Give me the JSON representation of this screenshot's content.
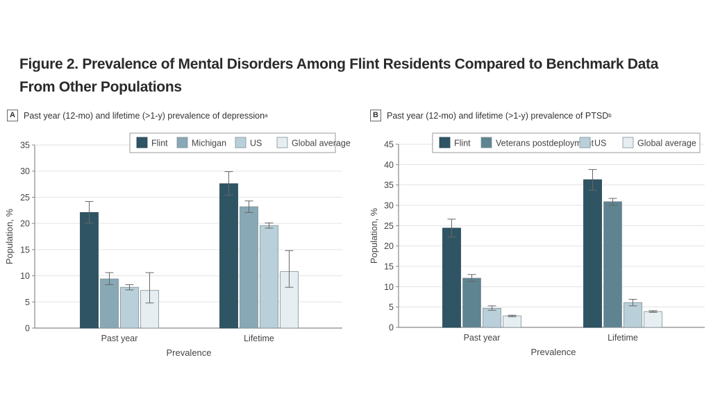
{
  "figure": {
    "title": "Figure 2.  Prevalence of Mental Disorders Among Flint Residents Compared to Benchmark Data From Other Populations"
  },
  "colors": {
    "flint": "#2f5565",
    "second": "#88a8b6",
    "veterans": "#5e8391",
    "us": "#b9cfd9",
    "global": "#e6eef2",
    "grid": "#e3e3e3",
    "axis": "#888888",
    "error": "#666666"
  },
  "chart_data": [
    {
      "type": "bar",
      "panel_letter": "A",
      "title": "Past year (12-mo) and lifetime (>1-y) prevalence of depression",
      "title_superscript": "a",
      "xlabel": "Prevalence",
      "ylabel": "Population, %",
      "ylim": [
        0,
        35
      ],
      "yticks": [
        0,
        5,
        10,
        15,
        20,
        25,
        30,
        35
      ],
      "grid": true,
      "legend_position": "top-right",
      "categories": [
        "Past year",
        "Lifetime"
      ],
      "series": [
        {
          "name": "Flint",
          "color_key": "flint",
          "values": [
            22.1,
            27.6
          ],
          "ci_low": [
            20.1,
            25.4
          ],
          "ci_high": [
            24.2,
            29.9
          ]
        },
        {
          "name": "Michigan",
          "color_key": "second",
          "values": [
            9.4,
            23.2
          ],
          "ci_low": [
            8.3,
            22.1
          ],
          "ci_high": [
            10.6,
            24.3
          ]
        },
        {
          "name": "US",
          "color_key": "us",
          "values": [
            7.8,
            19.6
          ],
          "ci_low": [
            7.3,
            19.1
          ],
          "ci_high": [
            8.3,
            20.1
          ]
        },
        {
          "name": "Global average",
          "color_key": "global",
          "values": [
            7.2,
            10.8
          ],
          "ci_low": [
            4.8,
            7.8
          ],
          "ci_high": [
            10.6,
            14.8
          ]
        }
      ]
    },
    {
      "type": "bar",
      "panel_letter": "B",
      "title": "Past year (12-mo) and lifetime (>1-y) prevalence of PTSD",
      "title_superscript": "b",
      "xlabel": "Prevalence",
      "ylabel": "Population, %",
      "ylim": [
        0,
        45
      ],
      "yticks": [
        0,
        5,
        10,
        15,
        20,
        25,
        30,
        35,
        40,
        45
      ],
      "grid": true,
      "legend_position": "top-right",
      "categories": [
        "Past year",
        "Lifetime"
      ],
      "series": [
        {
          "name": "Flint",
          "color_key": "flint",
          "values": [
            24.4,
            36.3
          ],
          "ci_low": [
            22.2,
            33.7
          ],
          "ci_high": [
            26.6,
            38.8
          ]
        },
        {
          "name": "Veterans postdeployment",
          "color_key": "veterans",
          "values": [
            12.1,
            30.9
          ],
          "ci_low": [
            11.3,
            30.0
          ],
          "ci_high": [
            13.0,
            31.7
          ]
        },
        {
          "name": "US",
          "color_key": "us",
          "values": [
            4.7,
            6.1
          ],
          "ci_low": [
            4.2,
            5.3
          ],
          "ci_high": [
            5.3,
            6.9
          ]
        },
        {
          "name": "Global average",
          "color_key": "global",
          "values": [
            2.8,
            3.9
          ],
          "ci_low": [
            2.6,
            3.7
          ],
          "ci_high": [
            3.0,
            4.1
          ]
        }
      ]
    }
  ]
}
